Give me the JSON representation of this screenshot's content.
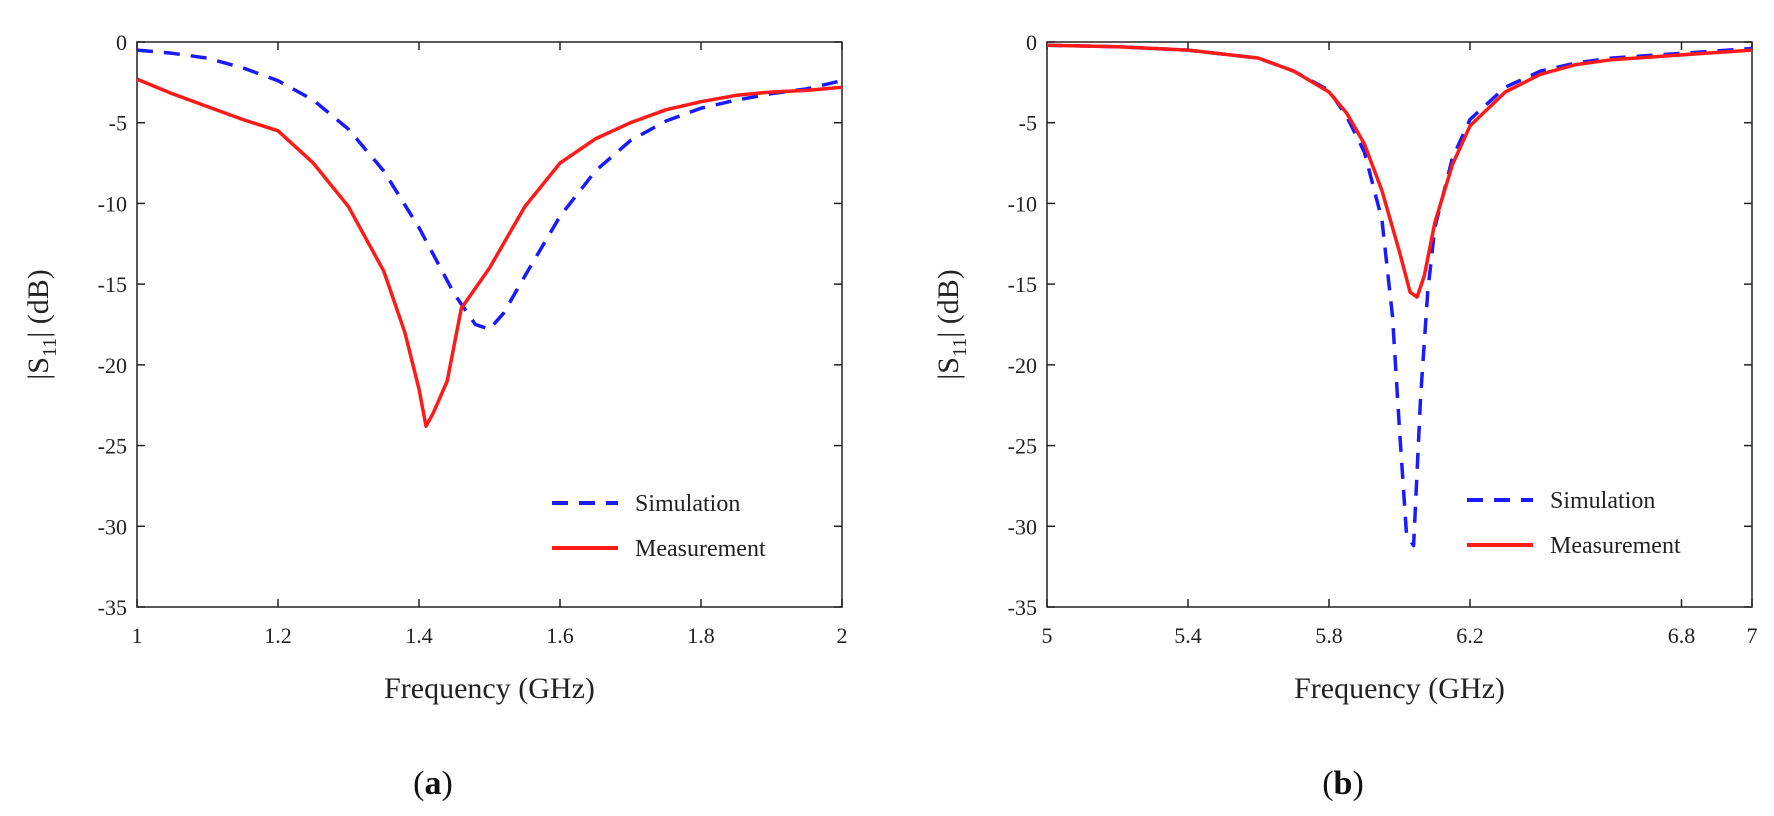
{
  "colors": {
    "simulation": "#1a1aff",
    "measurement": "#ff1a1a",
    "axis": "#222222"
  },
  "chart_data": [
    {
      "type": "line",
      "panel_label": "a",
      "xlabel": "Frequency (GHz)",
      "ylabel": "|S11| (dB)",
      "ylabel_parts": {
        "pre": "|S",
        "sub": "11",
        "post": "| (dB)"
      },
      "xlim": [
        1,
        2
      ],
      "ylim": [
        -35,
        0
      ],
      "xticks": [
        1,
        1.2,
        1.4,
        1.6,
        1.8,
        2
      ],
      "yticks": [
        0,
        -5,
        -10,
        -15,
        -20,
        -25,
        -30,
        -35
      ],
      "legend_position": "bottom-right",
      "grid": false,
      "series": [
        {
          "name": "Simulation",
          "style": "dashed",
          "color": "#1a1aff",
          "x": [
            1.0,
            1.05,
            1.1,
            1.15,
            1.2,
            1.25,
            1.3,
            1.35,
            1.4,
            1.45,
            1.48,
            1.5,
            1.52,
            1.55,
            1.6,
            1.65,
            1.7,
            1.75,
            1.8,
            1.85,
            1.9,
            1.95,
            2.0
          ],
          "y": [
            -0.5,
            -0.7,
            -1.0,
            -1.6,
            -2.4,
            -3.6,
            -5.4,
            -8.0,
            -11.5,
            -15.6,
            -17.5,
            -17.8,
            -16.8,
            -14.5,
            -10.8,
            -8.0,
            -6.1,
            -4.9,
            -4.1,
            -3.6,
            -3.2,
            -2.9,
            -2.4
          ]
        },
        {
          "name": "Measurement",
          "style": "solid",
          "color": "#ff1a1a",
          "x": [
            1.0,
            1.05,
            1.1,
            1.15,
            1.2,
            1.25,
            1.3,
            1.35,
            1.38,
            1.4,
            1.41,
            1.42,
            1.44,
            1.46,
            1.5,
            1.55,
            1.6,
            1.65,
            1.7,
            1.75,
            1.8,
            1.85,
            1.9,
            1.95,
            2.0
          ],
          "y": [
            -2.3,
            -3.2,
            -4.0,
            -4.8,
            -5.5,
            -7.5,
            -10.2,
            -14.2,
            -18.0,
            -21.5,
            -23.8,
            -23.0,
            -21.0,
            -16.5,
            -14.0,
            -10.2,
            -7.5,
            -6.0,
            -5.0,
            -4.2,
            -3.7,
            -3.3,
            -3.1,
            -3.0,
            -2.8
          ]
        }
      ]
    },
    {
      "type": "line",
      "panel_label": "b",
      "xlabel": "Frequency (GHz)",
      "ylabel": "|S11| (dB)",
      "ylabel_parts": {
        "pre": "|S",
        "sub": "11",
        "post": "| (dB)"
      },
      "xlim": [
        5,
        7
      ],
      "ylim": [
        -35,
        0
      ],
      "xticks": [
        5,
        5.4,
        5.8,
        6.2,
        6.8,
        7
      ],
      "xtick_labels": [
        "5",
        "5.4",
        "5.8",
        "6.2",
        "6.8",
        "7"
      ],
      "yticks": [
        0,
        -5,
        -10,
        -15,
        -20,
        -25,
        -30,
        -35
      ],
      "legend_position": "bottom-right",
      "grid": false,
      "series": [
        {
          "name": "Simulation",
          "style": "dashed",
          "color": "#1a1aff",
          "x": [
            5.0,
            5.2,
            5.4,
            5.6,
            5.7,
            5.8,
            5.85,
            5.9,
            5.95,
            5.98,
            6.0,
            6.02,
            6.04,
            6.06,
            6.08,
            6.1,
            6.15,
            6.2,
            6.3,
            6.4,
            6.5,
            6.6,
            6.8,
            7.0
          ],
          "y": [
            -0.2,
            -0.3,
            -0.5,
            -1.0,
            -1.8,
            -3.0,
            -4.6,
            -6.8,
            -11.0,
            -17.0,
            -24.0,
            -30.5,
            -31.2,
            -22.0,
            -15.5,
            -11.5,
            -7.2,
            -4.8,
            -2.8,
            -1.8,
            -1.3,
            -1.0,
            -0.7,
            -0.4
          ]
        },
        {
          "name": "Measurement",
          "style": "solid",
          "color": "#ff1a1a",
          "x": [
            5.0,
            5.2,
            5.4,
            5.6,
            5.7,
            5.8,
            5.85,
            5.9,
            5.95,
            6.0,
            6.03,
            6.05,
            6.07,
            6.1,
            6.15,
            6.2,
            6.3,
            6.4,
            6.5,
            6.6,
            6.8,
            7.0
          ],
          "y": [
            -0.2,
            -0.3,
            -0.5,
            -1.0,
            -1.8,
            -3.1,
            -4.4,
            -6.3,
            -9.2,
            -13.0,
            -15.5,
            -15.8,
            -14.5,
            -11.2,
            -7.6,
            -5.2,
            -3.1,
            -2.0,
            -1.4,
            -1.1,
            -0.8,
            -0.5
          ]
        }
      ]
    }
  ]
}
